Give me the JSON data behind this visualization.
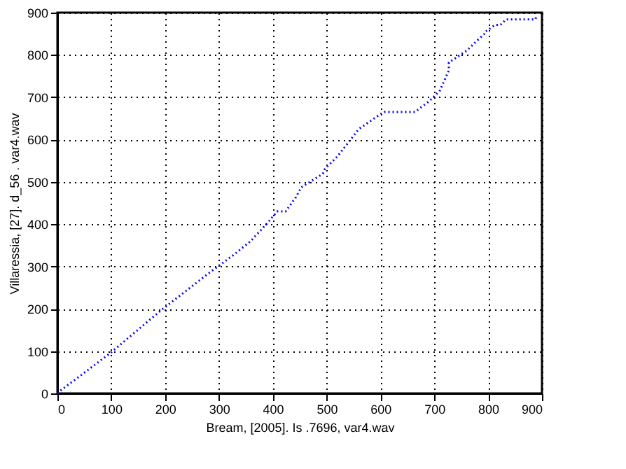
{
  "chart_data": {
    "type": "line",
    "xlabel": "Bream, [2005]. Is .7696, var4.wav",
    "ylabel": "Villaressia, [27]. d_56 . var4.wav",
    "xlim": [
      0,
      900
    ],
    "ylim": [
      0,
      900
    ],
    "xticks": [
      0,
      100,
      200,
      300,
      400,
      500,
      600,
      700,
      800,
      900
    ],
    "yticks": [
      0,
      100,
      200,
      300,
      400,
      500,
      600,
      700,
      800,
      900
    ],
    "grid": true,
    "marker": "none",
    "line_style": "dotted",
    "series": [
      {
        "color": "#0000ff",
        "x": [
          0,
          3,
          98,
          194,
          280,
          330,
          359,
          391,
          408,
          424,
          443,
          453,
          493,
          497,
          520,
          560,
          600,
          607,
          664,
          690,
          710,
          727,
          727,
          760,
          793,
          793,
          813,
          823,
          833,
          888,
          889
        ],
        "values": [
          0,
          4,
          95,
          198,
          283,
          330,
          360,
          404,
          430,
          430,
          464,
          487,
          519,
          531,
          560,
          625,
          660,
          665,
          665,
          690,
          715,
          763,
          782,
          810,
          850,
          853,
          871,
          871,
          884,
          884,
          890
        ]
      }
    ]
  }
}
